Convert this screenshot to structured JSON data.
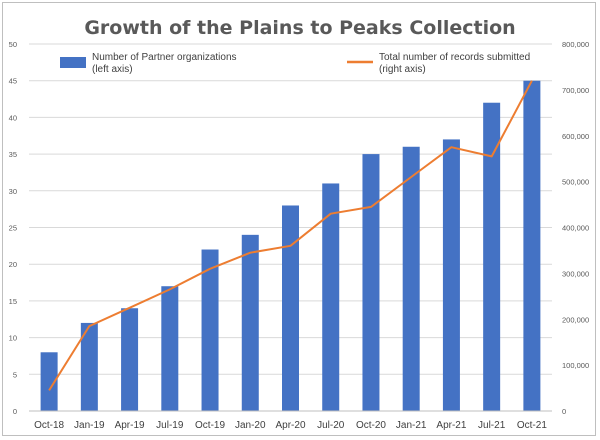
{
  "chart_data": {
    "type": "bar",
    "title": "Growth of the Plains to Peaks Collection",
    "categories": [
      "Oct-18",
      "Jan-19",
      "Apr-19",
      "Jul-19",
      "Oct-19",
      "Jan-20",
      "Apr-20",
      "Jul-20",
      "Oct-20",
      "Jan-21",
      "Apr-21",
      "Jul-21",
      "Oct-21"
    ],
    "series": [
      {
        "name": "Number of Partner organizations (left axis)",
        "name_lines": [
          "Number of Partner organizations",
          "(left axis)"
        ],
        "type": "bar",
        "axis": "left",
        "color": "#4472c4",
        "values": [
          8,
          12,
          14,
          17,
          22,
          24,
          28,
          31,
          35,
          36,
          37,
          42,
          45
        ]
      },
      {
        "name": "Total number of records submitted (right axis)",
        "name_lines": [
          "Total number of records submitted",
          "(right axis)"
        ],
        "type": "line",
        "axis": "right",
        "color": "#ed7d31",
        "values": [
          45000,
          185000,
          225000,
          265000,
          310000,
          345000,
          360000,
          430000,
          445000,
          510000,
          575000,
          555000,
          720000
        ]
      }
    ],
    "y_left": {
      "range": [
        0,
        50
      ],
      "ticks": [
        "0",
        "5",
        "10",
        "15",
        "20",
        "25",
        "30",
        "35",
        "40",
        "45",
        "50"
      ]
    },
    "y_right": {
      "range": [
        0,
        800000
      ],
      "ticks": [
        "0",
        "100,000",
        "200,000",
        "300,000",
        "400,000",
        "500,000",
        "600,000",
        "700,000",
        "800,000"
      ]
    },
    "grid": true,
    "legend": "top"
  }
}
